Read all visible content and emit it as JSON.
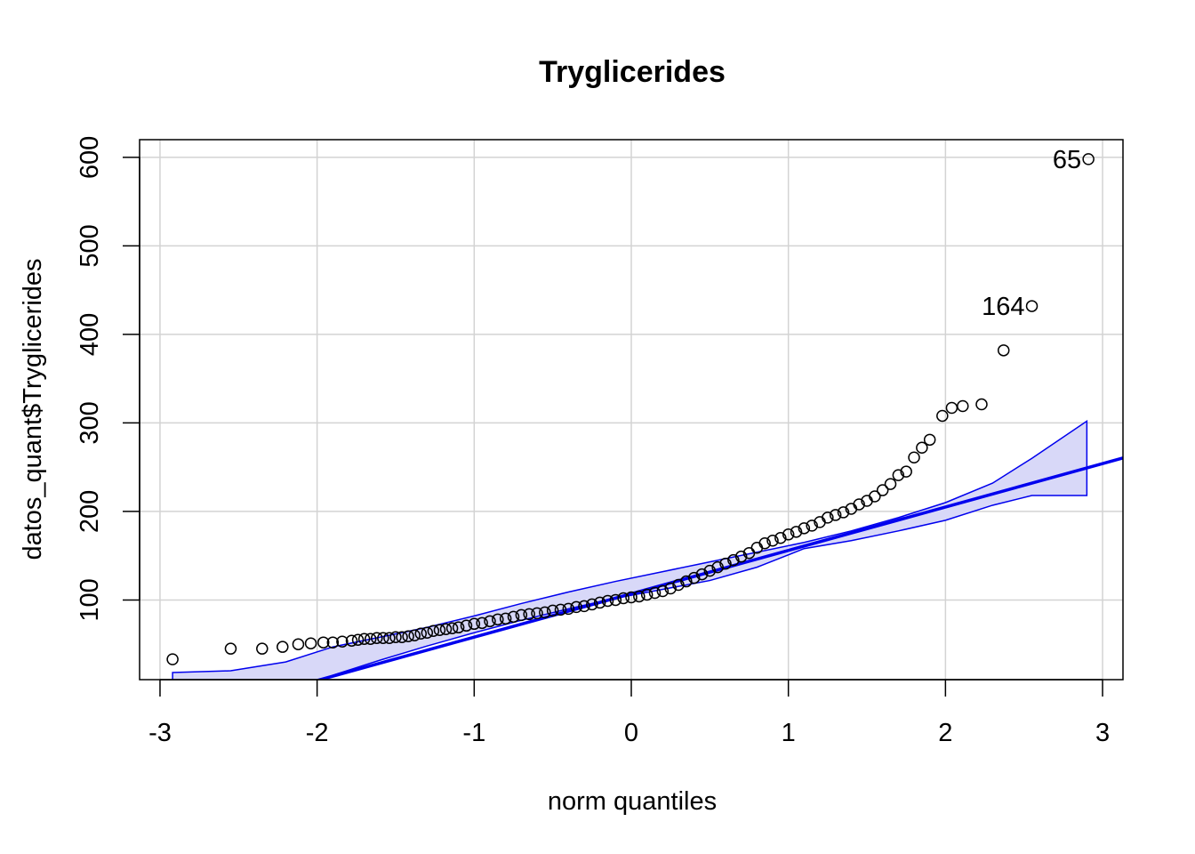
{
  "chart_data": {
    "type": "scatter",
    "title": "Tryglicerides",
    "xlabel": "norm quantiles",
    "ylabel": "datos_quant$Tryglicerides",
    "xlim": [
      -3.13,
      3.13
    ],
    "ylim": [
      10,
      620
    ],
    "x_ticks": [
      -3,
      -2,
      -1,
      0,
      1,
      2,
      3
    ],
    "y_ticks": [
      100,
      200,
      300,
      400,
      500,
      600
    ],
    "grid": true,
    "colors": {
      "points": "#000000",
      "reference_line": "#0000ee",
      "envelope_fill": "#d8d8f8",
      "envelope_line": "#0000ee",
      "grid": "#d3d3d3"
    },
    "reference_line": {
      "intercept": 107,
      "slope": 49
    },
    "envelope": {
      "x": [
        -2.92,
        -2.55,
        -2.2,
        -1.9,
        -1.6,
        -1.3,
        -1.0,
        -0.7,
        -0.4,
        -0.1,
        0.2,
        0.5,
        0.8,
        1.1,
        1.4,
        1.7,
        2.0,
        2.3,
        2.55,
        2.9
      ],
      "upper": [
        18,
        20,
        30,
        47,
        58,
        69,
        82,
        96,
        109,
        121,
        132,
        143,
        154,
        165,
        178,
        193,
        210,
        232,
        260,
        302
      ],
      "lower": [
        -8,
        -10,
        -8,
        15,
        32,
        48,
        63,
        77,
        90,
        102,
        112,
        122,
        137,
        158,
        167,
        178,
        190,
        207,
        218,
        218
      ]
    },
    "points": [
      [
        -2.92,
        33
      ],
      [
        -2.55,
        45
      ],
      [
        -2.35,
        45
      ],
      [
        -2.22,
        47
      ],
      [
        -2.12,
        50
      ],
      [
        -2.04,
        51
      ],
      [
        -1.96,
        52
      ],
      [
        -1.9,
        52
      ],
      [
        -1.84,
        53
      ],
      [
        -1.78,
        54
      ],
      [
        -1.74,
        55
      ],
      [
        -1.7,
        56
      ],
      [
        -1.66,
        56
      ],
      [
        -1.62,
        57
      ],
      [
        -1.58,
        57
      ],
      [
        -1.54,
        57
      ],
      [
        -1.5,
        58
      ],
      [
        -1.46,
        58
      ],
      [
        -1.42,
        59
      ],
      [
        -1.38,
        60
      ],
      [
        -1.34,
        62
      ],
      [
        -1.3,
        63
      ],
      [
        -1.26,
        65
      ],
      [
        -1.22,
        66
      ],
      [
        -1.18,
        67
      ],
      [
        -1.14,
        68
      ],
      [
        -1.1,
        69
      ],
      [
        -1.05,
        71
      ],
      [
        -1.0,
        73
      ],
      [
        -0.95,
        74
      ],
      [
        -0.9,
        76
      ],
      [
        -0.85,
        78
      ],
      [
        -0.8,
        79
      ],
      [
        -0.75,
        81
      ],
      [
        -0.7,
        83
      ],
      [
        -0.65,
        84
      ],
      [
        -0.6,
        85
      ],
      [
        -0.55,
        86
      ],
      [
        -0.5,
        88
      ],
      [
        -0.45,
        89
      ],
      [
        -0.4,
        90
      ],
      [
        -0.35,
        92
      ],
      [
        -0.3,
        93
      ],
      [
        -0.25,
        95
      ],
      [
        -0.2,
        97
      ],
      [
        -0.15,
        99
      ],
      [
        -0.1,
        100
      ],
      [
        -0.05,
        102
      ],
      [
        0.0,
        103
      ],
      [
        0.05,
        104
      ],
      [
        0.1,
        106
      ],
      [
        0.15,
        108
      ],
      [
        0.2,
        110
      ],
      [
        0.25,
        113
      ],
      [
        0.3,
        117
      ],
      [
        0.35,
        121
      ],
      [
        0.4,
        125
      ],
      [
        0.45,
        129
      ],
      [
        0.5,
        133
      ],
      [
        0.55,
        137
      ],
      [
        0.6,
        141
      ],
      [
        0.65,
        145
      ],
      [
        0.7,
        149
      ],
      [
        0.75,
        153
      ],
      [
        0.8,
        159
      ],
      [
        0.85,
        164
      ],
      [
        0.9,
        167
      ],
      [
        0.95,
        170
      ],
      [
        1.0,
        174
      ],
      [
        1.05,
        177
      ],
      [
        1.1,
        181
      ],
      [
        1.15,
        184
      ],
      [
        1.2,
        188
      ],
      [
        1.25,
        193
      ],
      [
        1.3,
        196
      ],
      [
        1.35,
        199
      ],
      [
        1.4,
        203
      ],
      [
        1.45,
        208
      ],
      [
        1.5,
        212
      ],
      [
        1.55,
        217
      ],
      [
        1.6,
        224
      ],
      [
        1.65,
        231
      ],
      [
        1.7,
        241
      ],
      [
        1.75,
        245
      ],
      [
        1.8,
        261
      ],
      [
        1.85,
        272
      ],
      [
        1.9,
        281
      ],
      [
        1.98,
        308
      ],
      [
        2.04,
        317
      ],
      [
        2.11,
        319
      ],
      [
        2.23,
        321
      ],
      [
        2.37,
        382
      ],
      [
        2.55,
        432
      ],
      [
        2.91,
        598
      ]
    ],
    "labeled_points": [
      {
        "label": "65",
        "x": 2.91,
        "y": 598
      },
      {
        "label": "164",
        "x": 2.55,
        "y": 432
      }
    ]
  }
}
